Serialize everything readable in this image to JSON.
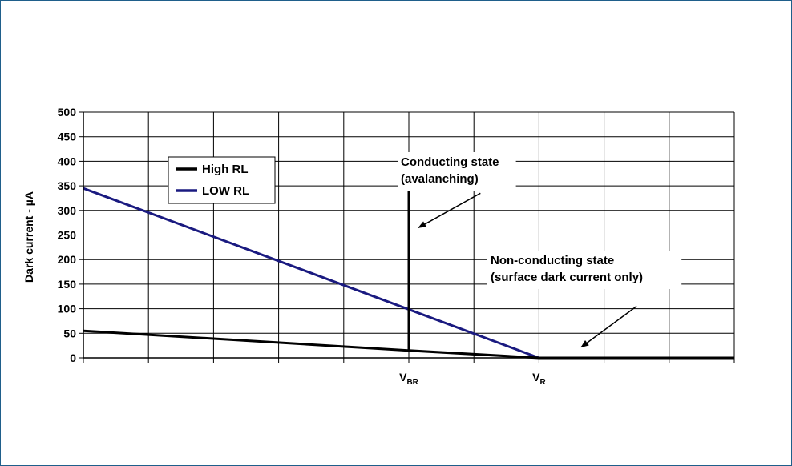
{
  "chart_data": {
    "type": "line",
    "ylabel": "Dark current - µA",
    "ylim": [
      0,
      500
    ],
    "yticks": [
      0,
      50,
      100,
      150,
      200,
      250,
      300,
      350,
      400,
      450,
      500
    ],
    "xlim": [
      0,
      10
    ],
    "x_tick_labels": [
      {
        "x": 5,
        "main": "V",
        "sub": "BR"
      },
      {
        "x": 7,
        "main": "V",
        "sub": "R"
      }
    ],
    "grid": true,
    "legend_position": "top-left",
    "series": [
      {
        "name": "High RL",
        "color": "#000000",
        "points": [
          [
            0,
            55
          ],
          [
            5,
            15
          ],
          [
            5,
            380
          ],
          [
            5,
            15
          ],
          [
            7,
            0
          ],
          [
            10,
            0
          ]
        ]
      },
      {
        "name": "LOW RL",
        "color": "#1a1a80",
        "points": [
          [
            0,
            345
          ],
          [
            7,
            0
          ],
          [
            10,
            0
          ]
        ]
      }
    ],
    "annotations": [
      {
        "lines": [
          "Conducting state",
          "(avalanching)"
        ],
        "arrow_from": [
          6.1,
          335
        ],
        "arrow_to": [
          5.15,
          265
        ]
      },
      {
        "lines": [
          "Non-conducting state",
          "(surface dark current only)"
        ],
        "arrow_from": [
          8.5,
          105
        ],
        "arrow_to": [
          7.65,
          22
        ]
      }
    ]
  }
}
